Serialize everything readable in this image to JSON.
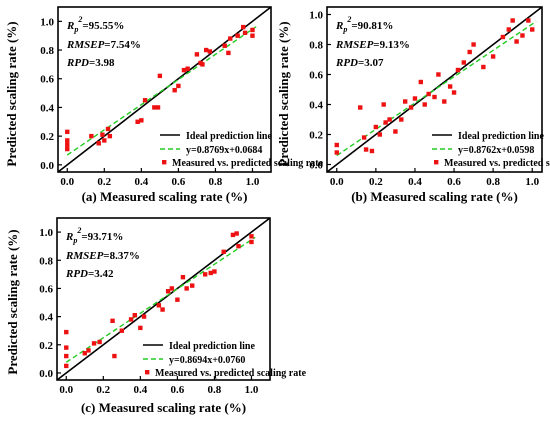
{
  "chart_data": [
    {
      "type": "scatter",
      "panel": "a",
      "xlabel": "(a) Measured scaling rate (%)",
      "ylabel": "Predicted scaling rate (%)",
      "xlim": [
        -0.05,
        1.1
      ],
      "ylim": [
        -0.05,
        1.1
      ],
      "xticks": [
        "0.0",
        "0.2",
        "0.4",
        "0.6",
        "0.8",
        "1.0"
      ],
      "yticks": [
        "0.0",
        "0.2",
        "0.4",
        "0.6",
        "0.8",
        "1.0"
      ],
      "stats": {
        "rp2_label": "R",
        "rp2_sub": "p",
        "rp2_sup": "2",
        "rp2_value": "=95.55%",
        "rmsep_label": "RMSEP",
        "rmsep_value": "=7.54%",
        "rpd_label": "RPD",
        "rpd_value": "=3.98"
      },
      "legend": {
        "ideal": "Ideal prediction line",
        "fit": "y=0.8769x+0.0684",
        "measured": "Measured vs. predicted scaling rate"
      },
      "fit": {
        "slope": 0.8769,
        "intercept": 0.0684
      },
      "points": [
        [
          0.0,
          0.23
        ],
        [
          0.0,
          0.17
        ],
        [
          0.0,
          0.14
        ],
        [
          0.0,
          0.11
        ],
        [
          0.13,
          0.2
        ],
        [
          0.17,
          0.15
        ],
        [
          0.19,
          0.21
        ],
        [
          0.2,
          0.17
        ],
        [
          0.22,
          0.25
        ],
        [
          0.23,
          0.2
        ],
        [
          0.38,
          0.3
        ],
        [
          0.4,
          0.31
        ],
        [
          0.42,
          0.45
        ],
        [
          0.47,
          0.4
        ],
        [
          0.49,
          0.4
        ],
        [
          0.5,
          0.62
        ],
        [
          0.58,
          0.52
        ],
        [
          0.6,
          0.55
        ],
        [
          0.63,
          0.66
        ],
        [
          0.65,
          0.67
        ],
        [
          0.7,
          0.77
        ],
        [
          0.72,
          0.71
        ],
        [
          0.73,
          0.7
        ],
        [
          0.75,
          0.8
        ],
        [
          0.77,
          0.79
        ],
        [
          0.85,
          0.83
        ],
        [
          0.87,
          0.78
        ],
        [
          0.88,
          0.88
        ],
        [
          0.92,
          0.9
        ],
        [
          0.95,
          0.96
        ],
        [
          0.96,
          0.92
        ],
        [
          1.0,
          0.9
        ],
        [
          1.0,
          0.94
        ]
      ]
    },
    {
      "type": "scatter",
      "panel": "b",
      "xlabel": "(b) Measured scaling rate (%)",
      "ylabel": "Predicted scaling rate (%)",
      "xlim": [
        -0.05,
        1.05
      ],
      "ylim": [
        -0.05,
        1.05
      ],
      "xticks": [
        "0.0",
        "0.2",
        "0.4",
        "0.6",
        "0.8",
        "1.0"
      ],
      "yticks": [
        "0.0",
        "0.2",
        "0.4",
        "0.6",
        "0.8",
        "1.0"
      ],
      "stats": {
        "rp2_label": "R",
        "rp2_sub": "p",
        "rp2_sup": "2",
        "rp2_value": "=90.81%",
        "rmsep_label": "RMSEP",
        "rmsep_value": "=9.13%",
        "rpd_label": "RPD",
        "rpd_value": "=3.07"
      },
      "legend": {
        "ideal": "Ideal prediction line",
        "fit": "y=0.8762x+0.0598",
        "measured": "Measured vs. predicted scaling rate"
      },
      "fit": {
        "slope": 0.8762,
        "intercept": 0.0598
      },
      "points": [
        [
          0.0,
          0.13
        ],
        [
          0.0,
          0.08
        ],
        [
          0.12,
          0.38
        ],
        [
          0.14,
          0.18
        ],
        [
          0.15,
          0.1
        ],
        [
          0.18,
          0.09
        ],
        [
          0.2,
          0.25
        ],
        [
          0.22,
          0.2
        ],
        [
          0.24,
          0.4
        ],
        [
          0.25,
          0.28
        ],
        [
          0.27,
          0.3
        ],
        [
          0.3,
          0.22
        ],
        [
          0.33,
          0.3
        ],
        [
          0.35,
          0.42
        ],
        [
          0.38,
          0.38
        ],
        [
          0.4,
          0.44
        ],
        [
          0.43,
          0.55
        ],
        [
          0.45,
          0.4
        ],
        [
          0.47,
          0.47
        ],
        [
          0.5,
          0.45
        ],
        [
          0.52,
          0.6
        ],
        [
          0.55,
          0.42
        ],
        [
          0.58,
          0.52
        ],
        [
          0.6,
          0.48
        ],
        [
          0.62,
          0.63
        ],
        [
          0.65,
          0.68
        ],
        [
          0.68,
          0.75
        ],
        [
          0.7,
          0.8
        ],
        [
          0.75,
          0.65
        ],
        [
          0.8,
          0.72
        ],
        [
          0.85,
          0.85
        ],
        [
          0.88,
          0.9
        ],
        [
          0.9,
          0.96
        ],
        [
          0.92,
          0.82
        ],
        [
          0.95,
          0.86
        ],
        [
          0.98,
          0.96
        ],
        [
          1.0,
          0.9
        ]
      ]
    },
    {
      "type": "scatter",
      "panel": "c",
      "xlabel": "(c) Measured scaling rate (%)",
      "ylabel": "Predicted scaling rate (%)",
      "xlim": [
        -0.05,
        1.1
      ],
      "ylim": [
        -0.05,
        1.1
      ],
      "xticks": [
        "0.0",
        "0.2",
        "0.4",
        "0.6",
        "0.8",
        "1.0"
      ],
      "yticks": [
        "0.0",
        "0.2",
        "0.4",
        "0.6",
        "0.8",
        "1.0"
      ],
      "stats": {
        "rp2_label": "R",
        "rp2_sub": "p",
        "rp2_sup": "2",
        "rp2_value": "=93.71%",
        "rmsep_label": "RMSEP",
        "rmsep_value": "=8.37%",
        "rpd_label": "RPD",
        "rpd_value": "=3.42"
      },
      "legend": {
        "ideal": "Ideal prediction line",
        "fit": "y=0.8694x+0.0760",
        "measured": "Measured vs. predicted scaling rate"
      },
      "fit": {
        "slope": 0.8694,
        "intercept": 0.076
      },
      "points": [
        [
          0.0,
          0.29
        ],
        [
          0.0,
          0.18
        ],
        [
          0.0,
          0.12
        ],
        [
          0.0,
          0.05
        ],
        [
          0.1,
          0.14
        ],
        [
          0.12,
          0.16
        ],
        [
          0.15,
          0.21
        ],
        [
          0.18,
          0.22
        ],
        [
          0.25,
          0.37
        ],
        [
          0.26,
          0.12
        ],
        [
          0.3,
          0.3
        ],
        [
          0.35,
          0.38
        ],
        [
          0.37,
          0.41
        ],
        [
          0.4,
          0.32
        ],
        [
          0.42,
          0.4
        ],
        [
          0.5,
          0.48
        ],
        [
          0.52,
          0.45
        ],
        [
          0.55,
          0.58
        ],
        [
          0.57,
          0.6
        ],
        [
          0.6,
          0.52
        ],
        [
          0.63,
          0.68
        ],
        [
          0.65,
          0.6
        ],
        [
          0.68,
          0.62
        ],
        [
          0.75,
          0.7
        ],
        [
          0.78,
          0.71
        ],
        [
          0.8,
          0.72
        ],
        [
          0.85,
          0.86
        ],
        [
          0.9,
          0.98
        ],
        [
          0.92,
          0.99
        ],
        [
          0.93,
          0.9
        ],
        [
          1.0,
          0.93
        ],
        [
          1.0,
          0.97
        ]
      ]
    }
  ]
}
